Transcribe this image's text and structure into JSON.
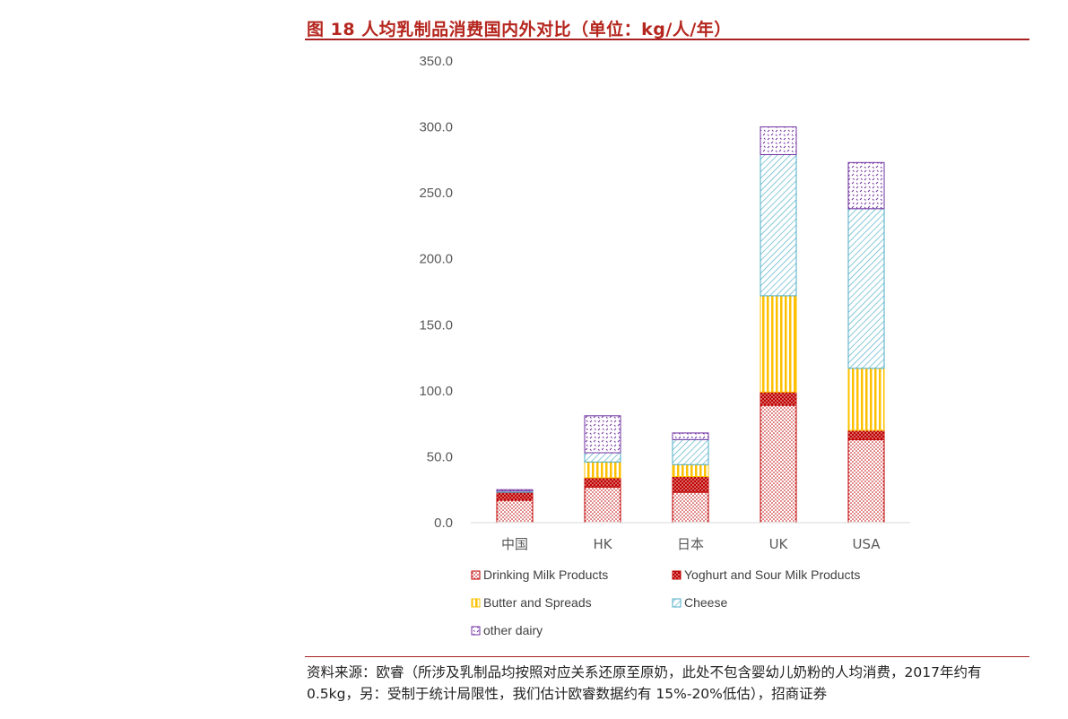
{
  "header": {
    "title": "图 18 人均乳制品消费国内外对比（单位：kg/人/年）"
  },
  "footer": {
    "source": "资料来源：欧睿（所涉及乳制品均按照对应关系还原至原奶，此处不包含婴幼儿奶粉的人均消费，2017年约有 0.5kg，另：受制于统计局限性，我们估计欧睿数据约有 15%-20%低估），招商证券"
  },
  "colors": {
    "drinking": "#c00000",
    "yoghurt": "#c00000",
    "butter": "#ffc000",
    "cheese": "#4bacc6",
    "other": "#7030a0",
    "axis": "#d9d9d9"
  },
  "chart_data": {
    "type": "bar",
    "stacked": true,
    "categories": [
      "中国",
      "HK",
      "日本",
      "UK",
      "USA"
    ],
    "series": [
      {
        "name": "Drinking Milk Products",
        "values": [
          17,
          27,
          23,
          89,
          63
        ]
      },
      {
        "name": "Yoghurt and Sour Milk Products",
        "values": [
          6,
          7,
          12,
          10,
          7
        ]
      },
      {
        "name": "Butter and Spreads",
        "values": [
          0,
          12,
          9,
          73,
          47
        ]
      },
      {
        "name": "Cheese",
        "values": [
          1,
          7,
          19,
          107,
          121
        ]
      },
      {
        "name": "other dairy",
        "values": [
          1,
          28,
          5,
          21,
          35
        ]
      }
    ],
    "yticks": [
      "0.0",
      "50.0",
      "100.0",
      "150.0",
      "200.0",
      "250.0",
      "300.0",
      "350.0"
    ],
    "ylim": [
      0,
      350
    ],
    "grid": false,
    "legend": "bottom"
  }
}
